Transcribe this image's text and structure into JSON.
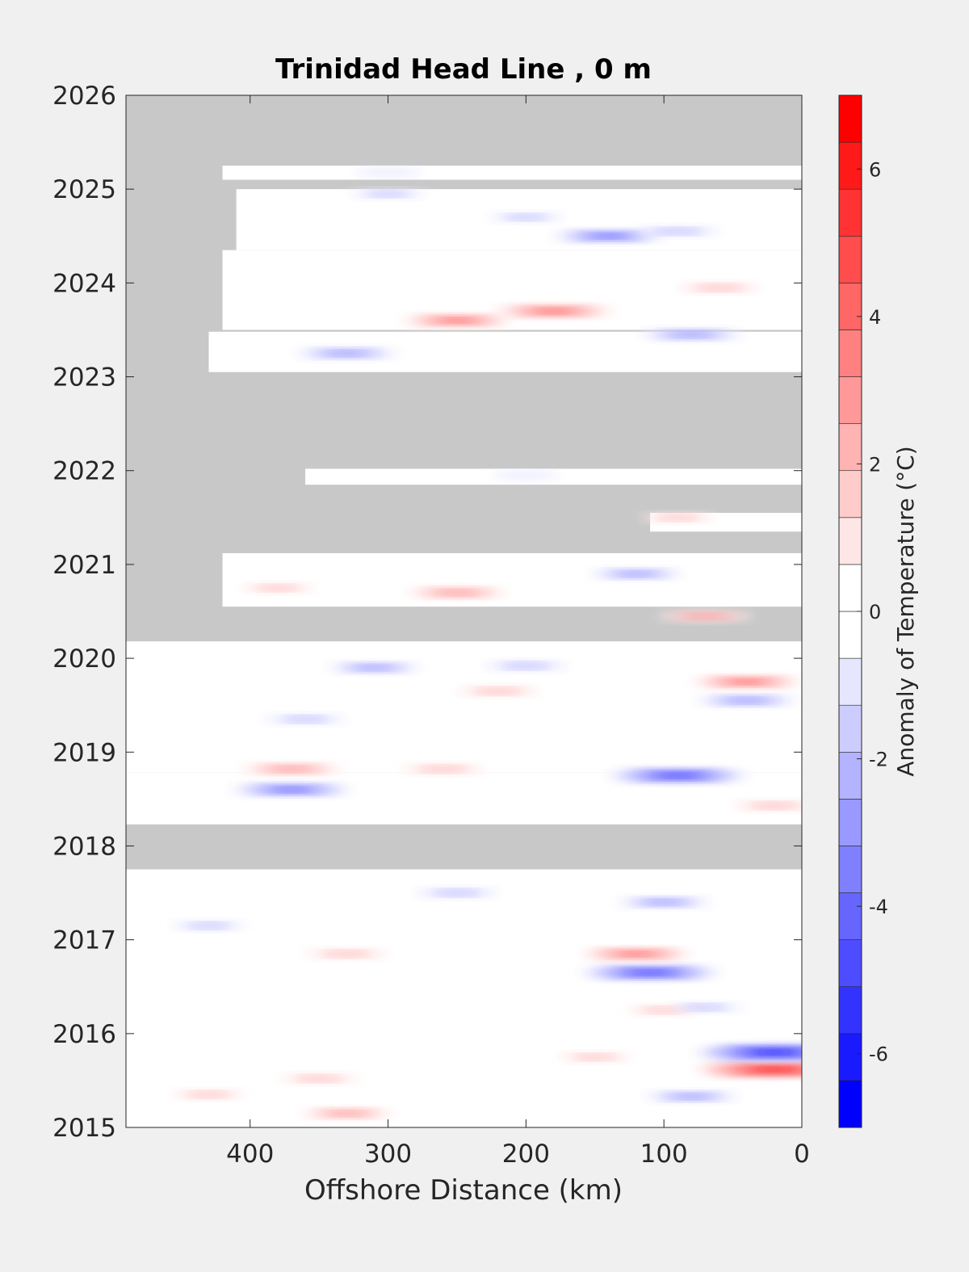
{
  "chart_data": {
    "type": "heatmap",
    "title": "Trinidad Head Line , 0 m",
    "xlabel": "Offshore Distance (km)",
    "ylabel": "",
    "xlim": [
      490,
      0
    ],
    "ylim": [
      2015,
      2026
    ],
    "x_ticks": [
      400,
      300,
      200,
      100,
      0
    ],
    "y_ticks": [
      2015,
      2016,
      2017,
      2018,
      2019,
      2020,
      2021,
      2022,
      2023,
      2024,
      2025,
      2026
    ],
    "no_data_color": "#c8c8c8",
    "colorbar": {
      "label": "Anomaly of Temperature (°C)",
      "clim": [
        -7,
        7
      ],
      "ticks": [
        -6,
        -4,
        -2,
        0,
        2,
        4,
        6
      ],
      "colors": [
        "#0000ff",
        "#1a1aff",
        "#3333ff",
        "#4d4dff",
        "#6666ff",
        "#8080ff",
        "#9999ff",
        "#b3b3ff",
        "#ccccff",
        "#e6e6ff",
        "#ffffff",
        "#ffffff",
        "#ffe6e6",
        "#ffcccc",
        "#ffb3b3",
        "#ff9999",
        "#ff8080",
        "#ff6666",
        "#ff4d4d",
        "#ff3333",
        "#ff1a1a",
        "#ff0000"
      ],
      "neutral_range": [
        -0.6,
        0.6
      ]
    },
    "observed_periods": [
      {
        "t0": 2015.0,
        "t1": 2017.75,
        "x_max": 490
      },
      {
        "t0": 2018.23,
        "t1": 2018.78,
        "x_max": 490
      },
      {
        "t0": 2018.78,
        "t1": 2020.18,
        "x_max": 490
      },
      {
        "t0": 2020.55,
        "t1": 2021.12,
        "x_max": 420
      },
      {
        "t0": 2021.35,
        "t1": 2021.55,
        "x_max": 110
      },
      {
        "t0": 2021.85,
        "t1": 2022.02,
        "x_max": 360
      },
      {
        "t0": 2023.05,
        "t1": 2023.48,
        "x_max": 430
      },
      {
        "t0": 2023.5,
        "t1": 2024.35,
        "x_max": 420
      },
      {
        "t0": 2024.35,
        "t1": 2025.0,
        "x_max": 410
      },
      {
        "t0": 2025.1,
        "t1": 2025.25,
        "x_max": 420
      }
    ],
    "anomaly_features": [
      {
        "x": 20,
        "t": 2015.62,
        "value": 6.0
      },
      {
        "x": 20,
        "t": 2015.8,
        "value": -6.0
      },
      {
        "x": 330,
        "t": 2015.15,
        "value": 2.5
      },
      {
        "x": 430,
        "t": 2015.35,
        "value": 1.5
      },
      {
        "x": 350,
        "t": 2015.52,
        "value": 1.8
      },
      {
        "x": 150,
        "t": 2015.75,
        "value": 1.5
      },
      {
        "x": 80,
        "t": 2015.33,
        "value": -2.5
      },
      {
        "x": 100,
        "t": 2016.25,
        "value": 1.5
      },
      {
        "x": 70,
        "t": 2016.28,
        "value": -1.5
      },
      {
        "x": 110,
        "t": 2016.65,
        "value": -5.0
      },
      {
        "x": 120,
        "t": 2016.85,
        "value": 3.5
      },
      {
        "x": 330,
        "t": 2016.85,
        "value": 2.0
      },
      {
        "x": 430,
        "t": 2017.15,
        "value": -1.5
      },
      {
        "x": 100,
        "t": 2017.4,
        "value": -2.5
      },
      {
        "x": 250,
        "t": 2017.5,
        "value": -2.0
      },
      {
        "x": 370,
        "t": 2018.82,
        "value": 3.0
      },
      {
        "x": 370,
        "t": 2018.6,
        "value": -4.0
      },
      {
        "x": 90,
        "t": 2018.75,
        "value": -5.0
      },
      {
        "x": 260,
        "t": 2018.82,
        "value": 2.0
      },
      {
        "x": 20,
        "t": 2018.43,
        "value": 2.0
      },
      {
        "x": 360,
        "t": 2019.35,
        "value": -1.8
      },
      {
        "x": 40,
        "t": 2019.55,
        "value": -3.0
      },
      {
        "x": 40,
        "t": 2019.75,
        "value": 3.5
      },
      {
        "x": 220,
        "t": 2019.65,
        "value": 2.0
      },
      {
        "x": 310,
        "t": 2019.9,
        "value": -2.5
      },
      {
        "x": 200,
        "t": 2019.92,
        "value": -2.0
      },
      {
        "x": 70,
        "t": 2020.45,
        "value": 2.5
      },
      {
        "x": 250,
        "t": 2020.7,
        "value": 3.0
      },
      {
        "x": 120,
        "t": 2020.9,
        "value": -2.5
      },
      {
        "x": 380,
        "t": 2020.75,
        "value": 1.5
      },
      {
        "x": 90,
        "t": 2021.5,
        "value": 1.5
      },
      {
        "x": 200,
        "t": 2021.95,
        "value": -1.0
      },
      {
        "x": 330,
        "t": 2023.25,
        "value": -3.0
      },
      {
        "x": 80,
        "t": 2023.45,
        "value": -3.0
      },
      {
        "x": 180,
        "t": 2023.7,
        "value": 4.0
      },
      {
        "x": 250,
        "t": 2023.6,
        "value": 3.5
      },
      {
        "x": 60,
        "t": 2023.95,
        "value": 2.0
      },
      {
        "x": 140,
        "t": 2024.5,
        "value": -3.5
      },
      {
        "x": 90,
        "t": 2024.55,
        "value": -2.0
      },
      {
        "x": 200,
        "t": 2024.7,
        "value": -1.5
      },
      {
        "x": 300,
        "t": 2024.95,
        "value": -1.5
      },
      {
        "x": 300,
        "t": 2025.18,
        "value": -1.0
      }
    ]
  }
}
